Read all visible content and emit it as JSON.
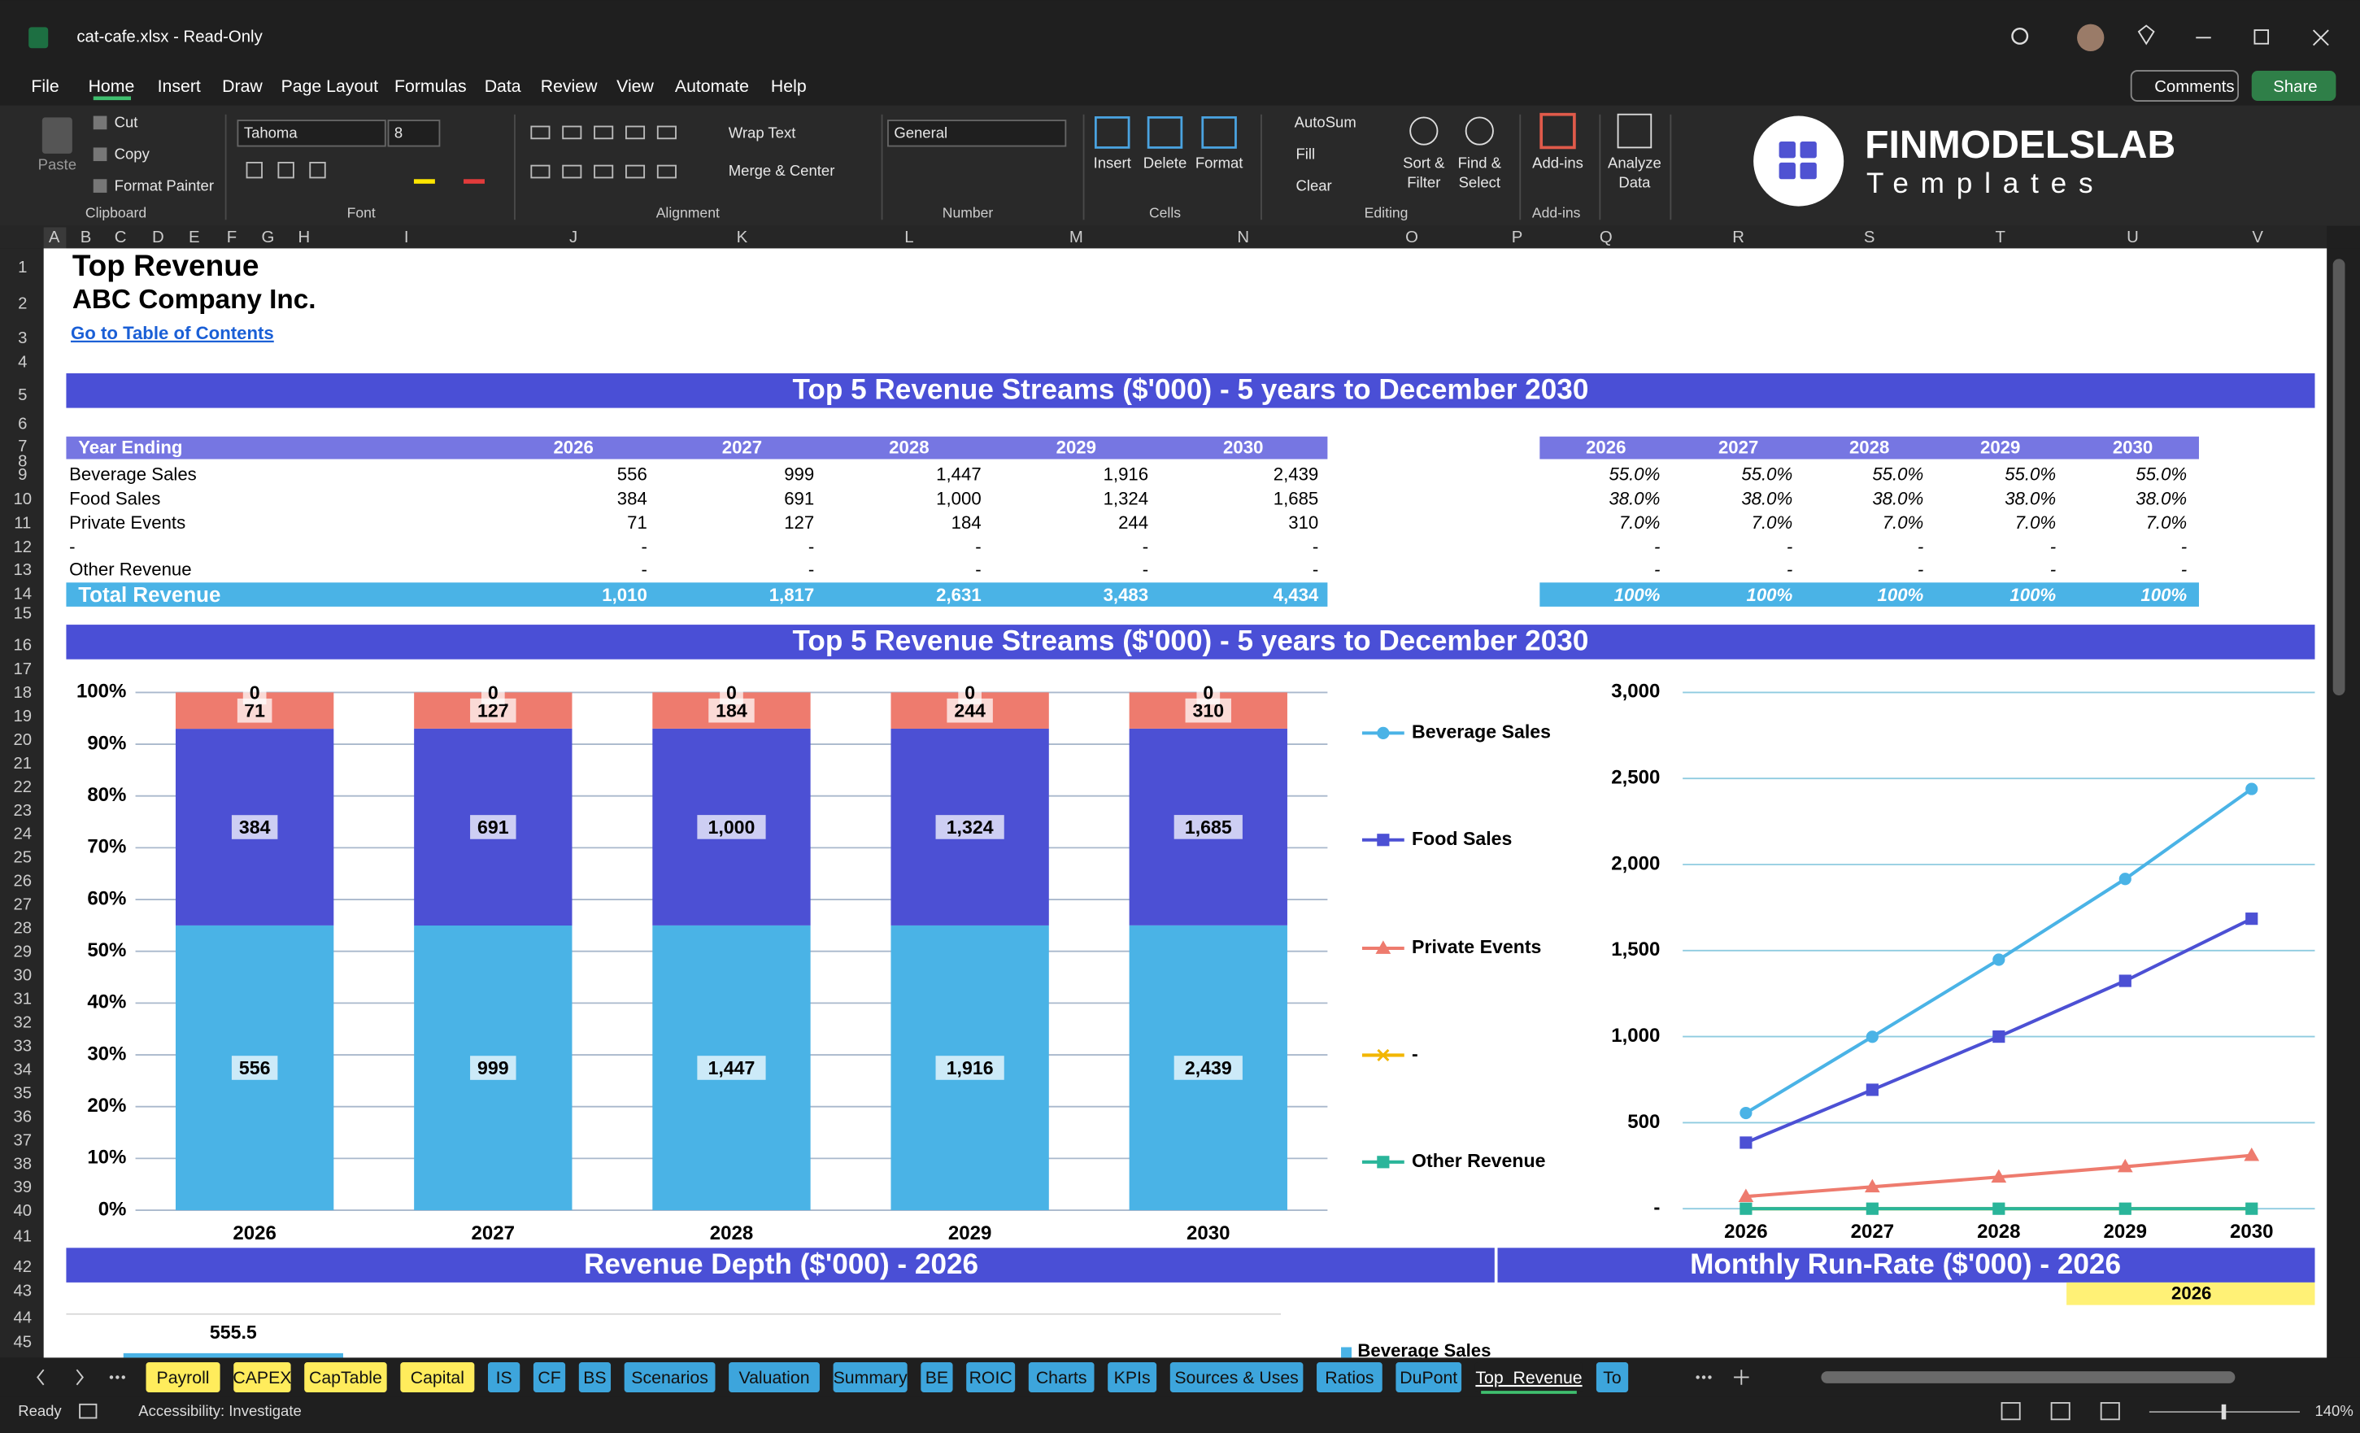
{
  "window": {
    "title": "cat-cafe.xlsx  -  Read-Only"
  },
  "menu": [
    "File",
    "Home",
    "Insert",
    "Draw",
    "Page Layout",
    "Formulas",
    "Data",
    "Review",
    "View",
    "Automate",
    "Help"
  ],
  "buttons": {
    "comments": "Comments",
    "share": "Share"
  },
  "ribbon": {
    "clipboard": {
      "paste": "Paste",
      "cut": "Cut",
      "copy": "Copy",
      "format_painter": "Format Painter",
      "label": "Clipboard"
    },
    "font": {
      "name": "Tahoma",
      "size": "8",
      "label": "Font"
    },
    "alignment": {
      "wrap": "Wrap Text",
      "merge": "Merge & Center",
      "label": "Alignment"
    },
    "number": {
      "format": "General",
      "label": "Number"
    },
    "cells": {
      "insert": "Insert",
      "delete": "Delete",
      "format": "Format",
      "label": "Cells"
    },
    "editing": {
      "autosum": "AutoSum",
      "fill": "Fill",
      "clear": "Clear",
      "sort": [
        "Sort &",
        "Filter"
      ],
      "find": [
        "Find &",
        "Select"
      ],
      "label": "Editing"
    },
    "addins": {
      "button": "Add-ins",
      "label": "Add-ins"
    },
    "analyze": [
      "Analyze",
      "Data"
    ]
  },
  "logo": {
    "brand": "FINMODELSLAB",
    "sub": "Templates"
  },
  "columns": [
    "A",
    "B",
    "C",
    "D",
    "E",
    "F",
    "G",
    "H",
    "I",
    "J",
    "K",
    "L",
    "M",
    "N",
    "O",
    "P",
    "Q",
    "R",
    "S",
    "T",
    "U",
    "V"
  ],
  "row_numbers": [
    1,
    2,
    3,
    4,
    5,
    6,
    7,
    8,
    9,
    10,
    11,
    12,
    13,
    14,
    15,
    16,
    17,
    18,
    19,
    20,
    21,
    22,
    23,
    24,
    25,
    26,
    27,
    28,
    29,
    30,
    31,
    32,
    33,
    34,
    35,
    36,
    37,
    38,
    39,
    40,
    41,
    42,
    43,
    44,
    45
  ],
  "sheet": {
    "title": "Top Revenue",
    "company": "ABC Company Inc.",
    "link": "Go to Table of Contents",
    "banner1": "Top 5 Revenue Streams ($'000) - 5 years to December 2030",
    "table": {
      "header": "Year Ending",
      "years": [
        "2026",
        "2027",
        "2028",
        "2029",
        "2030"
      ],
      "rows": [
        {
          "label": "Beverage Sales",
          "values": [
            "556",
            "999",
            "1,447",
            "1,916",
            "2,439"
          ],
          "shares": [
            "55.0%",
            "55.0%",
            "55.0%",
            "55.0%",
            "55.0%"
          ]
        },
        {
          "label": "Food Sales",
          "values": [
            "384",
            "691",
            "1,000",
            "1,324",
            "1,685"
          ],
          "shares": [
            "38.0%",
            "38.0%",
            "38.0%",
            "38.0%",
            "38.0%"
          ]
        },
        {
          "label": "Private Events",
          "values": [
            "71",
            "127",
            "184",
            "244",
            "310"
          ],
          "shares": [
            "7.0%",
            "7.0%",
            "7.0%",
            "7.0%",
            "7.0%"
          ]
        },
        {
          "label": "-",
          "values": [
            "-",
            "-",
            "-",
            "-",
            "-"
          ],
          "shares": [
            "-",
            "-",
            "-",
            "-",
            "-"
          ]
        },
        {
          "label": "Other Revenue",
          "values": [
            "-",
            "-",
            "-",
            "-",
            "-"
          ],
          "shares": [
            "-",
            "-",
            "-",
            "-",
            "-"
          ]
        }
      ],
      "total": {
        "label": "Total Revenue",
        "values": [
          "1,010",
          "1,817",
          "2,631",
          "3,483",
          "4,434"
        ],
        "shares": [
          "100%",
          "100%",
          "100%",
          "100%",
          "100%"
        ]
      }
    },
    "banner2": "Top 5 Revenue Streams ($'000) - 5 years to December 2030",
    "banner3": "Revenue Depth ($'000) - 2026",
    "banner4": "Monthly Run-Rate ($'000) - 2026",
    "year_cell": "2026",
    "depth_value": "555.5",
    "depth_legend": "Beverage Sales"
  },
  "chart_data": [
    {
      "type": "bar",
      "stacked": "percent",
      "grid": true,
      "categories": [
        "2026",
        "2027",
        "2028",
        "2029",
        "2030"
      ],
      "series": [
        {
          "name": "Beverage Sales",
          "color": "#4ab3e6",
          "values": [
            556,
            999,
            1447,
            1916,
            2439
          ],
          "value_labels": [
            "556",
            "999",
            "1,447",
            "1,916",
            "2,439"
          ]
        },
        {
          "name": "Food Sales",
          "color": "#4c50d4",
          "values": [
            384,
            691,
            1000,
            1324,
            1685
          ],
          "value_labels": [
            "384",
            "691",
            "1,000",
            "1,324",
            "1,685"
          ]
        },
        {
          "name": "Private Events",
          "color": "#ee7b6e",
          "values": [
            71,
            127,
            184,
            244,
            310
          ]
        },
        {
          "name": "-",
          "color": "#f2b600",
          "values": [
            0,
            0,
            0,
            0,
            0
          ],
          "data_labels": false
        },
        {
          "name": "Other Revenue",
          "color": "#2ab59a",
          "values": [
            0,
            0,
            0,
            0,
            0
          ]
        }
      ],
      "ylim": [
        0,
        100
      ],
      "yticks": [
        {
          "value": 0,
          "label": "0%"
        },
        {
          "value": 10,
          "label": "10%"
        },
        {
          "value": 20,
          "label": "20%"
        },
        {
          "value": 30,
          "label": "30%"
        },
        {
          "value": 40,
          "label": "40%"
        },
        {
          "value": 50,
          "label": "50%"
        },
        {
          "value": 60,
          "label": "60%"
        },
        {
          "value": 70,
          "label": "70%"
        },
        {
          "value": 80,
          "label": "80%"
        },
        {
          "value": 90,
          "label": "90%"
        },
        {
          "value": 100,
          "label": "100%"
        }
      ]
    },
    {
      "type": "line",
      "grid": true,
      "legend": "left",
      "categories": [
        "2026",
        "2027",
        "2028",
        "2029",
        "2030"
      ],
      "series": [
        {
          "name": "Beverage Sales",
          "color": "#4ab3e6",
          "marker": "circle",
          "values": [
            556,
            999,
            1447,
            1916,
            2439
          ]
        },
        {
          "name": "Food Sales",
          "color": "#4c50d4",
          "marker": "square",
          "values": [
            384,
            691,
            1000,
            1324,
            1685
          ]
        },
        {
          "name": "Private Events",
          "color": "#ee7b6e",
          "marker": "triangle",
          "values": [
            71,
            127,
            184,
            244,
            310
          ]
        },
        {
          "name": "-",
          "color": "#f2b600",
          "marker": "x",
          "values": [
            0,
            0,
            0,
            0,
            0
          ]
        },
        {
          "name": "Other Revenue",
          "color": "#2ab59a",
          "marker": "square",
          "values": [
            0,
            0,
            0,
            0,
            0
          ]
        }
      ],
      "ylim": [
        0,
        3000
      ],
      "yticks": [
        {
          "value": 0,
          "label": "-"
        },
        500,
        {
          "value": 1000,
          "label": "1,000"
        },
        {
          "value": 1500,
          "label": "1,500"
        },
        {
          "value": 2000,
          "label": "2,000"
        },
        {
          "value": 2500,
          "label": "2,500"
        },
        {
          "value": 3000,
          "label": "3,000"
        }
      ]
    }
  ],
  "tabs": [
    {
      "name": "Payroll",
      "color": "#ffec5c"
    },
    {
      "name": "CAPEX",
      "color": "#ffec5c"
    },
    {
      "name": "CapTable",
      "color": "#ffec5c"
    },
    {
      "name": "Capital",
      "color": "#ffec5c"
    },
    {
      "name": "IS",
      "color": "#3da5dc"
    },
    {
      "name": "CF",
      "color": "#3da5dc"
    },
    {
      "name": "BS",
      "color": "#3da5dc"
    },
    {
      "name": "Scenarios",
      "color": "#3da5dc"
    },
    {
      "name": "Valuation",
      "color": "#3da5dc"
    },
    {
      "name": "Summary",
      "color": "#3da5dc"
    },
    {
      "name": "BE",
      "color": "#3da5dc"
    },
    {
      "name": "ROIC",
      "color": "#3da5dc"
    },
    {
      "name": "Charts",
      "color": "#3da5dc"
    },
    {
      "name": "KPIs",
      "color": "#3da5dc"
    },
    {
      "name": "Sources & Uses",
      "color": "#3da5dc"
    },
    {
      "name": "Ratios",
      "color": "#3da5dc"
    },
    {
      "name": "DuPont",
      "color": "#3da5dc"
    },
    {
      "name": "Top_Revenue",
      "color": "#1f1f1f"
    },
    {
      "name": "To",
      "color": "#3da5dc"
    }
  ],
  "active_tab": 17,
  "status": {
    "ready": "Ready",
    "accessibility": "Accessibility: Investigate",
    "zoom": "140%"
  }
}
